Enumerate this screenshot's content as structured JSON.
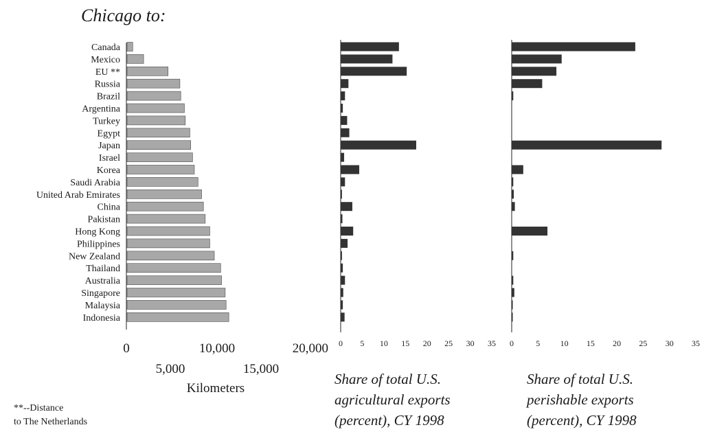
{
  "title": "Chicago to:",
  "footnote": [
    "**--Distance",
    "to The Netherlands"
  ],
  "chart_data": [
    {
      "type": "bar",
      "orientation": "horizontal",
      "categories": [
        "Canada",
        "Mexico",
        "EU **",
        "Russia",
        "Brazil",
        "Argentina",
        "Turkey",
        "Egypt",
        "Japan",
        "Israel",
        "Korea",
        "Saudi Arabia",
        "United Arab Emirates",
        "China",
        "Pakistan",
        "Hong Kong",
        "Philippines",
        "New Zealand",
        "Thailand",
        "Australia",
        "Singapore",
        "Malaysia",
        "Indonesia"
      ],
      "values": [
        700,
        1900,
        4600,
        5900,
        6000,
        6400,
        6500,
        7000,
        7100,
        7300,
        7500,
        7900,
        8300,
        8500,
        8700,
        9200,
        9200,
        9700,
        10400,
        10500,
        10900,
        11000,
        11300
      ],
      "xlabel": "Kilometers",
      "xlim": [
        0,
        20000
      ],
      "ticks_upper": [
        "0",
        "10,000",
        "20,000"
      ],
      "ticks_upper_values": [
        0,
        10000,
        20000
      ],
      "ticks_lower": [
        "5,000",
        "15,000"
      ],
      "ticks_lower_values": [
        5000,
        15000
      ],
      "color": "#a8a8a8"
    },
    {
      "type": "bar",
      "orientation": "horizontal",
      "categories": [
        "Canada",
        "Mexico",
        "EU **",
        "Russia",
        "Brazil",
        "Argentina",
        "Turkey",
        "Egypt",
        "Japan",
        "Israel",
        "Korea",
        "Saudi Arabia",
        "United Arab Emirates",
        "China",
        "Pakistan",
        "Hong Kong",
        "Philippines",
        "New Zealand",
        "Thailand",
        "Australia",
        "Singapore",
        "Malaysia",
        "Indonesia"
      ],
      "values": [
        13.5,
        12,
        15.3,
        1.8,
        1.0,
        0.5,
        1.5,
        2.0,
        17.5,
        0.8,
        4.3,
        1.0,
        0.3,
        2.7,
        0.4,
        2.9,
        1.6,
        0.3,
        0.5,
        1.0,
        0.6,
        0.5,
        0.9
      ],
      "xlim": [
        0,
        35
      ],
      "ticks": [
        "0",
        "5",
        "10",
        "15",
        "20",
        "25",
        "30",
        "35"
      ],
      "tick_values": [
        0,
        5,
        10,
        15,
        20,
        25,
        30,
        35
      ],
      "caption": [
        "Share of total U.S.",
        "agricultural exports",
        "(percent), CY 1998"
      ],
      "color": "#333333"
    },
    {
      "type": "bar",
      "orientation": "horizontal",
      "categories": [
        "Canada",
        "Mexico",
        "EU **",
        "Russia",
        "Brazil",
        "Argentina",
        "Turkey",
        "Egypt",
        "Japan",
        "Israel",
        "Korea",
        "Saudi Arabia",
        "United Arab Emirates",
        "China",
        "Pakistan",
        "Hong Kong",
        "Philippines",
        "New Zealand",
        "Thailand",
        "Australia",
        "Singapore",
        "Malaysia",
        "Indonesia"
      ],
      "values": [
        23.5,
        9.5,
        8.5,
        5.8,
        0.3,
        0,
        0,
        0,
        28.5,
        0,
        2.2,
        0.3,
        0.4,
        0.6,
        0,
        6.8,
        0,
        0.3,
        0,
        0.3,
        0.5,
        0.2,
        0.2
      ],
      "xlim": [
        0,
        35
      ],
      "ticks": [
        "0",
        "5",
        "10",
        "15",
        "20",
        "25",
        "30",
        "35"
      ],
      "tick_values": [
        0,
        5,
        10,
        15,
        20,
        25,
        30,
        35
      ],
      "caption": [
        "Share of total U.S.",
        "perishable  exports",
        "(percent), CY 1998"
      ],
      "color": "#333333"
    }
  ]
}
